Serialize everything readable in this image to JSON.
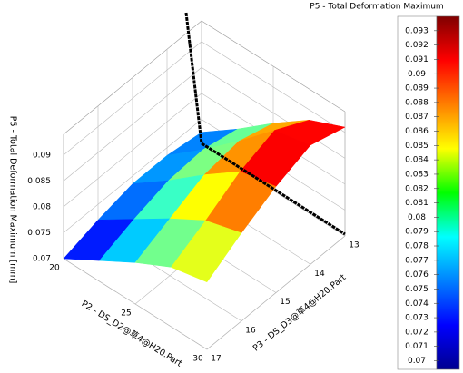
{
  "chart_data": {
    "type": "surface",
    "title": "P5 - Total Deformation Maximum",
    "xlabel": "P2 - DS_D2@草4@H20.Part",
    "ylabel": "P3 - DS_D3@草4@H20.Part",
    "zlabel": "P5 - Total Deformation Maximum  [mm]",
    "x": [
      20,
      22.5,
      25,
      27.5,
      30
    ],
    "y": [
      13,
      14,
      15,
      16,
      17
    ],
    "z": [
      [
        0.0725,
        0.0735,
        0.0735,
        0.072,
        0.07
      ],
      [
        0.0775,
        0.079,
        0.0785,
        0.0765,
        0.074
      ],
      [
        0.083,
        0.085,
        0.084,
        0.081,
        0.078
      ],
      [
        0.088,
        0.0915,
        0.089,
        0.085,
        0.0815
      ],
      [
        0.091,
        0.093,
        0.0905,
        0.087,
        0.083
      ]
    ],
    "xlim": [
      20,
      30
    ],
    "ylim": [
      13,
      17
    ],
    "zlim": [
      0.07,
      0.094
    ],
    "xticks": [
      20,
      25,
      30
    ],
    "yticks": [
      13,
      14,
      15,
      16,
      17
    ],
    "zticks": [
      0.07,
      0.075,
      0.08,
      0.085,
      0.09
    ],
    "colormap": "jet",
    "clim": [
      0.0694,
      0.094
    ],
    "cticks": [
      0.07,
      0.071,
      0.072,
      0.073,
      0.074,
      0.075,
      0.076,
      0.077,
      0.078,
      0.079,
      0.08,
      0.081,
      0.082,
      0.083,
      0.084,
      0.085,
      0.086,
      0.087,
      0.088,
      0.089,
      0.09,
      0.091,
      0.092,
      0.093
    ]
  }
}
